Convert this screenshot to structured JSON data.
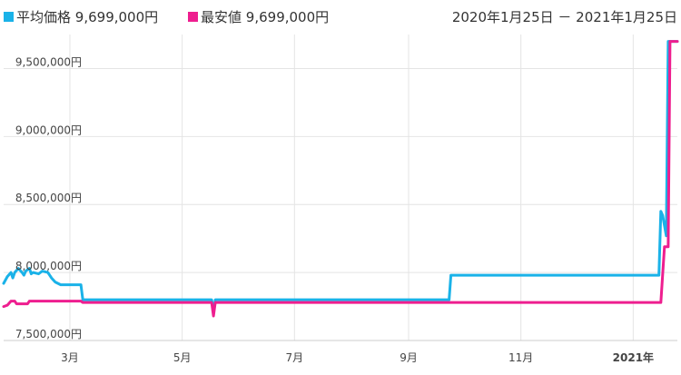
{
  "header": {
    "legend": [
      {
        "label": "平均価格",
        "value": "9,699,000円",
        "color": "#1ab2e8"
      },
      {
        "label": "最安値",
        "value": "9,699,000円",
        "color": "#ee1e8f"
      }
    ],
    "date_range": "2020年1月25日 － 2021年1月25日"
  },
  "chart_data": {
    "type": "line",
    "title": "",
    "xlabel": "",
    "ylabel": "",
    "x_start": "2020-01-25",
    "x_end": "2021-01-25",
    "ylim": [
      7500000,
      9750000
    ],
    "y_ticks": [
      7500000,
      8000000,
      8500000,
      9000000,
      9500000
    ],
    "y_tick_labels": [
      "7,500,000円",
      "8,000,000円",
      "8,500,000円",
      "9,000,000円",
      "9,500,000円"
    ],
    "x_ticks": [
      {
        "date": "2020-03-01",
        "label": "3月",
        "bold": false
      },
      {
        "date": "2020-05-01",
        "label": "5月",
        "bold": false
      },
      {
        "date": "2020-07-01",
        "label": "7月",
        "bold": false
      },
      {
        "date": "2020-09-01",
        "label": "9月",
        "bold": false
      },
      {
        "date": "2020-11-01",
        "label": "11月",
        "bold": false
      },
      {
        "date": "2021-01-01",
        "label": "2021年",
        "bold": true
      }
    ],
    "grid": true,
    "legend_position": "top-left",
    "series": [
      {
        "name": "平均価格",
        "color": "#1ab2e8",
        "points": [
          [
            "2020-01-25",
            7920000
          ],
          [
            "2020-01-27",
            7970000
          ],
          [
            "2020-01-29",
            8000000
          ],
          [
            "2020-01-30",
            7960000
          ],
          [
            "2020-01-31",
            8000000
          ],
          [
            "2020-02-02",
            8030000
          ],
          [
            "2020-02-04",
            8000000
          ],
          [
            "2020-02-05",
            7980000
          ],
          [
            "2020-02-06",
            8010000
          ],
          [
            "2020-02-08",
            8030000
          ],
          [
            "2020-02-09",
            7990000
          ],
          [
            "2020-02-10",
            8000000
          ],
          [
            "2020-02-13",
            7990000
          ],
          [
            "2020-02-15",
            8010000
          ],
          [
            "2020-02-18",
            8000000
          ],
          [
            "2020-02-20",
            7960000
          ],
          [
            "2020-02-22",
            7930000
          ],
          [
            "2020-02-25",
            7910000
          ],
          [
            "2020-03-07",
            7910000
          ],
          [
            "2020-03-08",
            7800000
          ],
          [
            "2020-05-17",
            7800000
          ],
          [
            "2020-05-18",
            7720000
          ],
          [
            "2020-05-19",
            7800000
          ],
          [
            "2020-09-23",
            7800000
          ],
          [
            "2020-09-24",
            7980000
          ],
          [
            "2021-01-15",
            7980000
          ],
          [
            "2021-01-16",
            8450000
          ],
          [
            "2021-01-17",
            8420000
          ],
          [
            "2021-01-19",
            8270000
          ],
          [
            "2021-01-20",
            9699000
          ],
          [
            "2021-01-25",
            9699000
          ]
        ]
      },
      {
        "name": "最安値",
        "color": "#ee1e8f",
        "points": [
          [
            "2020-01-25",
            7750000
          ],
          [
            "2020-01-27",
            7760000
          ],
          [
            "2020-01-29",
            7790000
          ],
          [
            "2020-01-31",
            7790000
          ],
          [
            "2020-02-01",
            7770000
          ],
          [
            "2020-02-07",
            7770000
          ],
          [
            "2020-02-08",
            7790000
          ],
          [
            "2020-02-28",
            7790000
          ],
          [
            "2020-03-07",
            7790000
          ],
          [
            "2020-03-08",
            7780000
          ],
          [
            "2020-05-17",
            7780000
          ],
          [
            "2020-05-18",
            7680000
          ],
          [
            "2020-05-19",
            7780000
          ],
          [
            "2021-01-16",
            7780000
          ],
          [
            "2021-01-18",
            8190000
          ],
          [
            "2021-01-20",
            8190000
          ],
          [
            "2021-01-21",
            9699000
          ],
          [
            "2021-01-25",
            9699000
          ]
        ]
      }
    ]
  }
}
